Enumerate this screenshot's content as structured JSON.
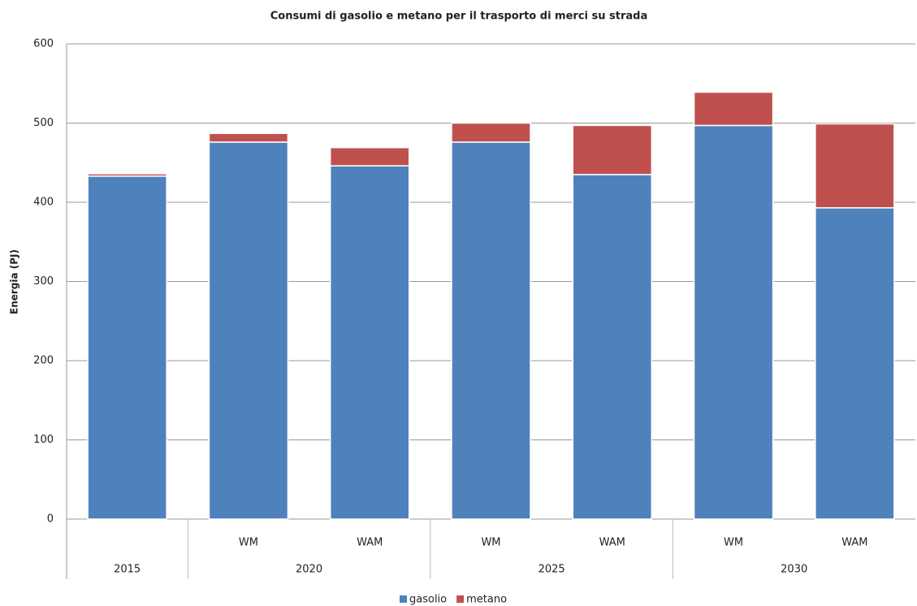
{
  "chart_data": {
    "type": "stacked_bar",
    "title": "Consumi di gasolio e metano per il trasporto di merci su strada",
    "y_label": "Energia (PJ)",
    "groups": [
      {
        "label": "2015",
        "categories": [
          null
        ]
      },
      {
        "label": "2020",
        "categories": [
          "WM",
          "WAM"
        ]
      },
      {
        "label": "2025",
        "categories": [
          "WM",
          "WAM"
        ]
      },
      {
        "label": "2030",
        "categories": [
          "WM",
          "WAM"
        ]
      }
    ],
    "series": [
      {
        "name": "gasolio",
        "color": "#4f81bd",
        "values": [
          433,
          476,
          446,
          476,
          435,
          497,
          393
        ]
      },
      {
        "name": "metano",
        "color": "#c0504d",
        "values": [
          3,
          11,
          23,
          24,
          62,
          42,
          106
        ]
      }
    ],
    "ylim": [
      0,
      600
    ],
    "yticks": [
      0,
      100,
      200,
      300,
      400,
      500,
      600
    ],
    "grid": true,
    "legend": "bottom"
  }
}
